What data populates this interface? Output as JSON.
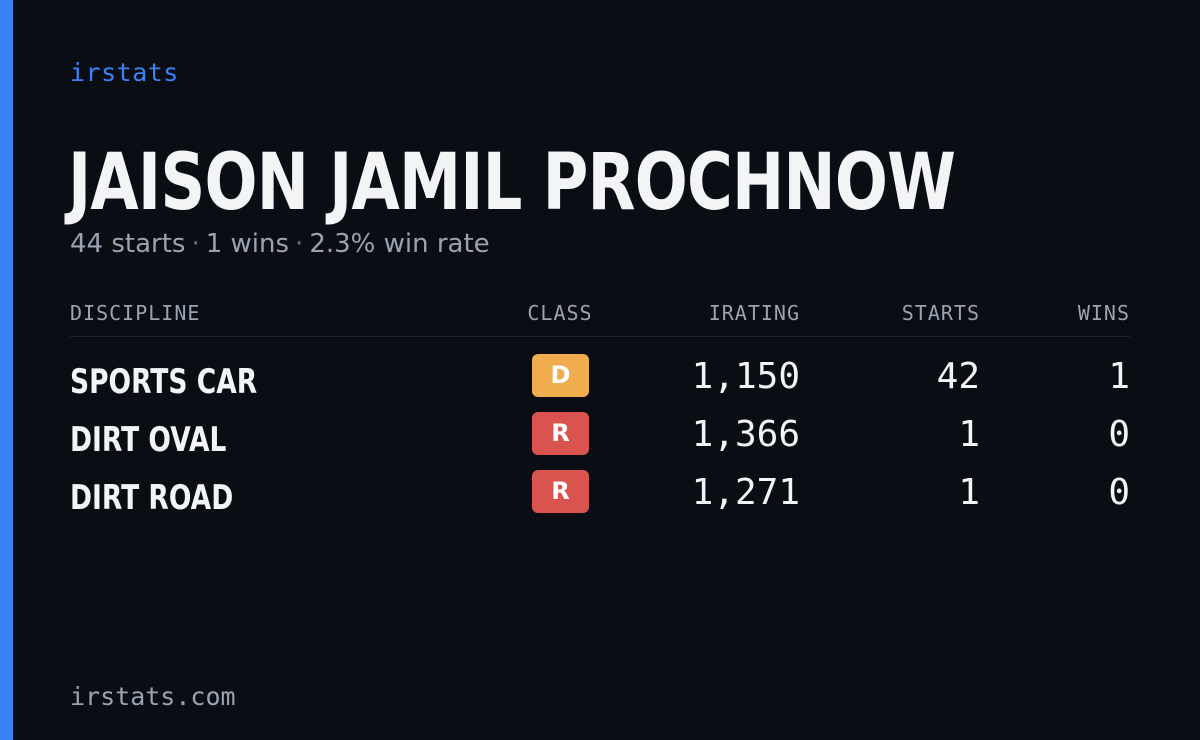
{
  "brand": "irstats",
  "player": {
    "name": "JAISON JAMIL PROCHNOW"
  },
  "summary": {
    "starts": "44 starts",
    "wins": "1 wins",
    "win_rate": "2.3% win rate",
    "separator": "·"
  },
  "table": {
    "headers": {
      "discipline": "DISCIPLINE",
      "class": "CLASS",
      "irating": "IRATING",
      "starts": "STARTS",
      "wins": "WINS"
    },
    "rows": [
      {
        "discipline": "SPORTS CAR",
        "class": "D",
        "class_color": "#f0ad4e",
        "irating": "1,150",
        "starts": "42",
        "wins": "1"
      },
      {
        "discipline": "DIRT OVAL",
        "class": "R",
        "class_color": "#d9534f",
        "irating": "1,366",
        "starts": "1",
        "wins": "0"
      },
      {
        "discipline": "DIRT ROAD",
        "class": "R",
        "class_color": "#d9534f",
        "irating": "1,271",
        "starts": "1",
        "wins": "0"
      }
    ]
  },
  "footer": "irstats.com",
  "colors": {
    "accent": "#3b82f6",
    "background": "#0a0d14"
  }
}
